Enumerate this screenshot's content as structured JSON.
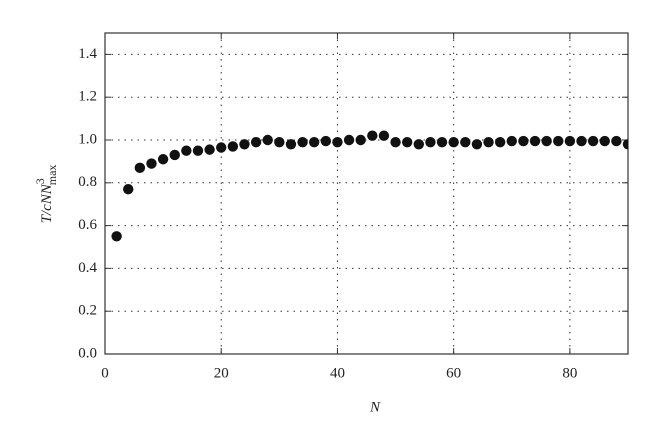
{
  "chart_data": {
    "type": "scatter",
    "xlabel": "N",
    "ylabel": {
      "main": "T/cNN",
      "sup": "3",
      "sub": "max"
    },
    "x": [
      2,
      4,
      6,
      8,
      10,
      12,
      14,
      16,
      18,
      20,
      22,
      24,
      26,
      28,
      30,
      32,
      34,
      36,
      38,
      40,
      42,
      44,
      46,
      48,
      50,
      52,
      54,
      56,
      58,
      60,
      62,
      64,
      66,
      68,
      70,
      72,
      74,
      76,
      78,
      80,
      82,
      84,
      86,
      88,
      90
    ],
    "series": [
      {
        "color": "#111111",
        "values": [
          0.55,
          0.77,
          0.87,
          0.89,
          0.91,
          0.93,
          0.95,
          0.95,
          0.955,
          0.965,
          0.97,
          0.98,
          0.99,
          1.0,
          0.99,
          0.98,
          0.99,
          0.99,
          0.995,
          0.99,
          1.0,
          1.0,
          1.02,
          1.02,
          0.99,
          0.99,
          0.98,
          0.99,
          0.99,
          0.99,
          0.99,
          0.98,
          0.99,
          0.99,
          0.995,
          0.995,
          0.995,
          0.995,
          0.995,
          0.995,
          0.995,
          0.995,
          0.995,
          0.995,
          0.98
        ]
      }
    ],
    "xlim": [
      0,
      90
    ],
    "xticks": [
      0,
      20,
      40,
      60,
      80
    ],
    "ylim": [
      0,
      1.5
    ],
    "yticks": [
      {
        "value": 0,
        "label": "0.0"
      },
      0.2,
      0.4,
      0.6,
      0.8,
      {
        "value": 1,
        "label": "1.0"
      },
      1.2,
      1.4
    ],
    "grid": true
  }
}
